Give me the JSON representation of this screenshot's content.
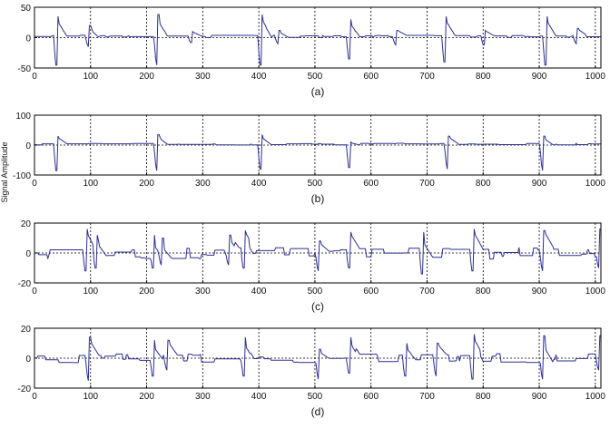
{
  "ylabel": "Signal Amplitude",
  "colors": {
    "signal": "#2b2f8f",
    "axis": "#000000",
    "grid": "#000000"
  },
  "chart_data": [
    {
      "type": "line",
      "label": "(a)",
      "xlim": [
        0,
        1010
      ],
      "ylim": [
        -50,
        50
      ],
      "xticks": [
        0,
        100,
        200,
        300,
        400,
        500,
        600,
        700,
        800,
        900,
        1000
      ],
      "yticks": [
        50,
        0,
        -50
      ],
      "grid": true,
      "gridStyle": "dotted",
      "baseline": 2,
      "noise": 2,
      "events": [
        [
          38,
          -45,
          35
        ],
        [
          95,
          -15,
          20
        ],
        [
          217,
          -45,
          38
        ],
        [
          278,
          -8,
          10
        ],
        [
          402,
          -45,
          38
        ],
        [
          433,
          -10,
          12
        ],
        [
          560,
          -35,
          30
        ],
        [
          643,
          -12,
          12
        ],
        [
          730,
          -40,
          35
        ],
        [
          800,
          -12,
          12
        ],
        [
          910,
          -45,
          35
        ],
        [
          965,
          -10,
          15
        ]
      ]
    },
    {
      "type": "line",
      "label": "(b)",
      "xlim": [
        0,
        1010
      ],
      "ylim": [
        -100,
        100
      ],
      "xticks": [
        0,
        100,
        200,
        300,
        400,
        500,
        600,
        700,
        800,
        900,
        1000
      ],
      "yticks": [
        100,
        0,
        -100
      ],
      "grid": true,
      "gridStyle": "dotted",
      "baseline": 3,
      "noise": 3,
      "events": [
        [
          38,
          -85,
          30
        ],
        [
          217,
          -85,
          35
        ],
        [
          402,
          -80,
          35
        ],
        [
          560,
          -75,
          10
        ],
        [
          735,
          -80,
          30
        ],
        [
          905,
          -85,
          30
        ]
      ]
    },
    {
      "type": "line",
      "label": "(c)",
      "xlim": [
        0,
        1010
      ],
      "ylim": [
        -20,
        20
      ],
      "xticks": [
        0,
        100,
        200,
        300,
        400,
        500,
        600,
        700,
        800,
        900,
        1000
      ],
      "yticks": [
        20,
        0,
        -20
      ],
      "grid": true,
      "gridStyle": "dotted",
      "baseline": 0,
      "noise": 4,
      "events": [
        [
          90,
          -12,
          16
        ],
        [
          108,
          -10,
          12
        ],
        [
          210,
          -10,
          12
        ],
        [
          225,
          -8,
          10
        ],
        [
          345,
          -8,
          12
        ],
        [
          372,
          -10,
          15
        ],
        [
          505,
          -12,
          8
        ],
        [
          560,
          -10,
          14
        ],
        [
          690,
          -14,
          14
        ],
        [
          780,
          -12,
          16
        ],
        [
          905,
          -12,
          15
        ],
        [
          1005,
          -10,
          16
        ]
      ]
    },
    {
      "type": "line",
      "label": "(d)",
      "xlim": [
        0,
        1010
      ],
      "ylim": [
        -20,
        20
      ],
      "xticks": [
        0,
        100,
        200,
        300,
        400,
        500,
        600,
        700,
        800,
        900,
        1000
      ],
      "yticks": [
        20,
        0,
        -20
      ],
      "grid": true,
      "gridStyle": "dotted",
      "baseline": 0,
      "noise": 3,
      "events": [
        [
          95,
          -15,
          14
        ],
        [
          210,
          -12,
          12
        ],
        [
          235,
          -8,
          12
        ],
        [
          372,
          -12,
          14
        ],
        [
          505,
          -14,
          6
        ],
        [
          560,
          -10,
          14
        ],
        [
          660,
          -12,
          10
        ],
        [
          715,
          -12,
          10
        ],
        [
          780,
          -14,
          16
        ],
        [
          905,
          -14,
          15
        ],
        [
          1005,
          -8,
          15
        ]
      ]
    }
  ]
}
